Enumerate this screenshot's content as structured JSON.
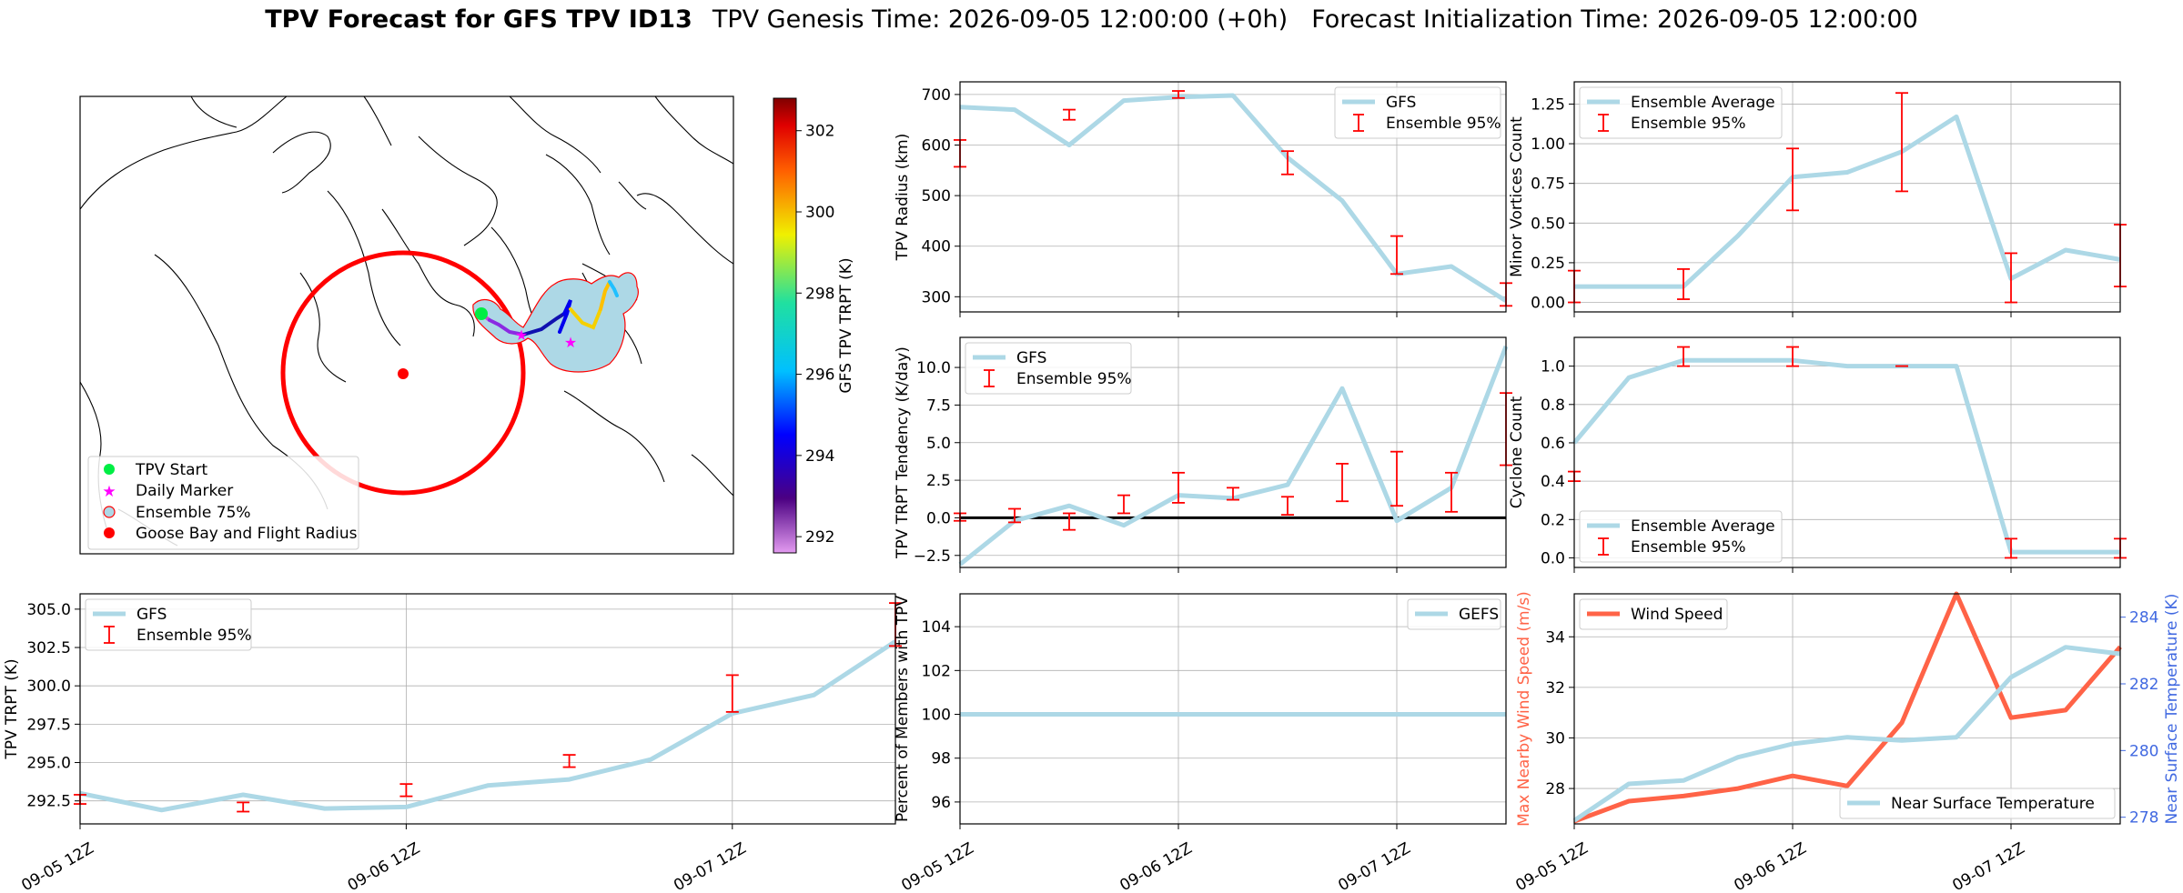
{
  "title": {
    "main": "TPV Forecast for GFS TPV ID13",
    "genesis": "TPV Genesis Time: 2026-09-05 12:00:00 (+0h)",
    "init": "Forecast Initialization Time: 2026-09-05 12:00:00"
  },
  "colors": {
    "gfs": "#add8e6",
    "ensemble": "#ff0000",
    "wind": "#ff6347",
    "temp_axis": "#4169e1",
    "zero_line": "#000000"
  },
  "map": {
    "colorbar_label": "GFS TPV TRPT (K)",
    "colorbar_ticks": [
      292,
      294,
      296,
      298,
      300,
      302
    ],
    "colorbar_range": [
      291.6,
      302.8
    ],
    "legend": [
      "TPV Start",
      "Daily Marker",
      "Ensemble 75%",
      "Goose Bay and Flight Radius"
    ]
  },
  "x_ticks": [
    "09-05 12Z",
    "09-06 12Z",
    "09-07 12Z"
  ],
  "chart_data": [
    {
      "id": "radius",
      "type": "line",
      "x": [
        "09-05 12Z",
        "09-05 18Z",
        "09-06 00Z",
        "09-06 06Z",
        "09-06 12Z",
        "09-06 18Z",
        "09-07 00Z",
        "09-07 06Z",
        "09-07 12Z",
        "09-07 18Z",
        "09-08 00Z"
      ],
      "ylabel": "TPV Radius (km)",
      "ylim": [
        270,
        725
      ],
      "yticks": [
        300,
        400,
        500,
        600,
        700
      ],
      "series": [
        {
          "name": "GFS",
          "values": [
            675,
            670,
            600,
            688,
            695,
            698,
            575,
            490,
            345,
            360,
            292
          ]
        }
      ],
      "errorbars": {
        "name": "Ensemble 95%",
        "x_index": [
          0,
          2,
          4,
          6,
          8,
          10
        ],
        "low": [
          557,
          650,
          693,
          542,
          345,
          282
        ],
        "high": [
          610,
          670,
          707,
          588,
          420,
          327
        ]
      },
      "legend": [
        "GFS",
        "Ensemble 95%"
      ],
      "legend_loc": "upper right"
    },
    {
      "id": "minor",
      "type": "line",
      "x": [
        "09-05 12Z",
        "09-05 18Z",
        "09-06 00Z",
        "09-06 06Z",
        "09-06 12Z",
        "09-06 18Z",
        "09-07 00Z",
        "09-07 06Z",
        "09-07 12Z",
        "09-07 18Z",
        "09-08 00Z"
      ],
      "ylabel": "Minor Vortices Count",
      "ylim": [
        -0.06,
        1.39
      ],
      "yticks": [
        "0.00",
        "0.25",
        "0.50",
        "0.75",
        "1.00",
        "1.25"
      ],
      "series": [
        {
          "name": "Ensemble Average",
          "values": [
            0.1,
            0.1,
            0.1,
            0.42,
            0.79,
            0.82,
            0.95,
            1.17,
            0.15,
            0.33,
            0.27
          ]
        }
      ],
      "errorbars": {
        "name": "Ensemble 95%",
        "x_index": [
          0,
          2,
          4,
          6,
          8,
          10
        ],
        "low": [
          0.0,
          0.02,
          0.58,
          0.7,
          0.0,
          0.1
        ],
        "high": [
          0.2,
          0.21,
          0.97,
          1.32,
          0.31,
          0.49
        ]
      },
      "legend": [
        "Ensemble Average",
        "Ensemble 95%"
      ],
      "legend_loc": "upper left"
    },
    {
      "id": "tendency",
      "type": "line",
      "x": [
        "09-05 12Z",
        "09-05 18Z",
        "09-06 00Z",
        "09-06 06Z",
        "09-06 12Z",
        "09-06 18Z",
        "09-07 00Z",
        "09-07 06Z",
        "09-07 12Z",
        "09-07 18Z",
        "09-08 00Z"
      ],
      "ylabel": "TPV TRPT Tendency (K/day)",
      "ylim": [
        -3.3,
        12.0
      ],
      "yticks": [
        "−2.5",
        "0.0",
        "2.5",
        "5.0",
        "7.5",
        "10.0"
      ],
      "hline": 0,
      "series": [
        {
          "name": "GFS",
          "values": [
            -3.1,
            -0.2,
            0.8,
            -0.5,
            1.5,
            1.3,
            2.2,
            8.6,
            -0.2,
            2.0,
            11.4
          ]
        }
      ],
      "errorbars": {
        "name": "Ensemble 95%",
        "x_index": [
          0,
          1,
          2,
          3,
          4,
          5,
          6,
          7,
          8,
          9,
          10
        ],
        "low": [
          -0.2,
          -0.3,
          -0.8,
          0.3,
          1.0,
          1.2,
          0.2,
          1.1,
          0.8,
          0.4,
          3.5
        ],
        "high": [
          0.3,
          0.6,
          0.3,
          1.5,
          3.0,
          2.0,
          1.4,
          3.6,
          4.4,
          3.0,
          8.3
        ]
      },
      "legend": [
        "GFS",
        "Ensemble 95%"
      ],
      "legend_loc": "upper left"
    },
    {
      "id": "cyclone",
      "type": "line",
      "x": [
        "09-05 12Z",
        "09-05 18Z",
        "09-06 00Z",
        "09-06 06Z",
        "09-06 12Z",
        "09-06 18Z",
        "09-07 00Z",
        "09-07 06Z",
        "09-07 12Z",
        "09-07 18Z",
        "09-08 00Z"
      ],
      "ylabel": "Cyclone Count",
      "ylim": [
        -0.05,
        1.15
      ],
      "yticks": [
        "0.0",
        "0.2",
        "0.4",
        "0.6",
        "0.8",
        "1.0"
      ],
      "series": [
        {
          "name": "Ensemble Average",
          "values": [
            0.6,
            0.94,
            1.03,
            1.03,
            1.03,
            1.0,
            1.0,
            1.0,
            0.03,
            0.03,
            0.03
          ]
        }
      ],
      "errorbars": {
        "name": "Ensemble 95%",
        "x_index": [
          0,
          2,
          4,
          6,
          8,
          10
        ],
        "low": [
          0.4,
          1.0,
          1.0,
          1.0,
          0.0,
          0.0
        ],
        "high": [
          0.45,
          1.1,
          1.1,
          1.0,
          0.1,
          0.1
        ]
      },
      "legend": [
        "Ensemble Average",
        "Ensemble 95%"
      ],
      "legend_loc": "lower left"
    },
    {
      "id": "trpt",
      "type": "line",
      "x": [
        "09-05 12Z",
        "09-05 18Z",
        "09-06 00Z",
        "09-06 06Z",
        "09-06 12Z",
        "09-06 18Z",
        "09-07 00Z",
        "09-07 06Z",
        "09-07 12Z",
        "09-07 18Z",
        "09-08 00Z"
      ],
      "ylabel": "TPV TRPT (K)",
      "ylim": [
        291.0,
        306.0
      ],
      "yticks": [
        "292.5",
        "295.0",
        "297.5",
        "300.0",
        "302.5",
        "305.0"
      ],
      "series": [
        {
          "name": "GFS",
          "values": [
            293.0,
            291.9,
            292.9,
            292.0,
            292.1,
            293.5,
            293.9,
            295.2,
            298.2,
            299.4,
            302.9
          ]
        }
      ],
      "errorbars": {
        "name": "Ensemble 95%",
        "x_index": [
          0,
          2,
          4,
          6,
          8,
          10
        ],
        "low": [
          292.3,
          291.8,
          292.8,
          294.7,
          298.3,
          302.6
        ],
        "high": [
          292.9,
          292.4,
          293.6,
          295.5,
          300.7,
          305.4
        ]
      },
      "legend": [
        "GFS",
        "Ensemble 95%"
      ],
      "legend_loc": "upper left"
    },
    {
      "id": "percent",
      "type": "line",
      "x": [
        "09-05 12Z",
        "09-05 18Z",
        "09-06 00Z",
        "09-06 06Z",
        "09-06 12Z",
        "09-06 18Z",
        "09-07 00Z",
        "09-07 06Z",
        "09-07 12Z",
        "09-07 18Z",
        "09-08 00Z"
      ],
      "ylabel": "Percent of Members with TPV",
      "ylim": [
        95.0,
        105.5
      ],
      "yticks": [
        "96",
        "98",
        "100",
        "102",
        "104"
      ],
      "series": [
        {
          "name": "GEFS",
          "values": [
            100,
            100,
            100,
            100,
            100,
            100,
            100,
            100,
            100,
            100,
            100
          ]
        }
      ],
      "legend": [
        "GEFS"
      ],
      "legend_loc": "upper right"
    },
    {
      "id": "wind",
      "type": "line",
      "x": [
        "09-05 12Z",
        "09-05 18Z",
        "09-06 00Z",
        "09-06 06Z",
        "09-06 12Z",
        "09-06 18Z",
        "09-07 00Z",
        "09-07 06Z",
        "09-07 12Z",
        "09-07 18Z",
        "09-08 00Z"
      ],
      "ylabel": "Max Nearby Wind Speed (m/s)",
      "ylim": [
        26.6,
        35.7
      ],
      "yticks": [
        "28",
        "30",
        "32",
        "34"
      ],
      "y2label": "Near Surface Temperature (K)",
      "y2lim": [
        277.8,
        284.7
      ],
      "y2ticks": [
        "278",
        "280",
        "282",
        "284"
      ],
      "series": [
        {
          "name": "Wind Speed",
          "axis": "left",
          "values": [
            26.7,
            27.5,
            27.7,
            28.0,
            28.5,
            28.1,
            30.6,
            35.7,
            30.8,
            31.1,
            33.6
          ]
        },
        {
          "name": "Near Surface Temperature",
          "axis": "right",
          "values": [
            277.9,
            279.0,
            279.1,
            279.8,
            280.2,
            280.4,
            280.3,
            280.4,
            282.2,
            283.1,
            282.9
          ]
        }
      ],
      "legend": [
        "Wind Speed",
        "Near Surface Temperature"
      ],
      "legend_loc": "upper left / lower right"
    }
  ]
}
